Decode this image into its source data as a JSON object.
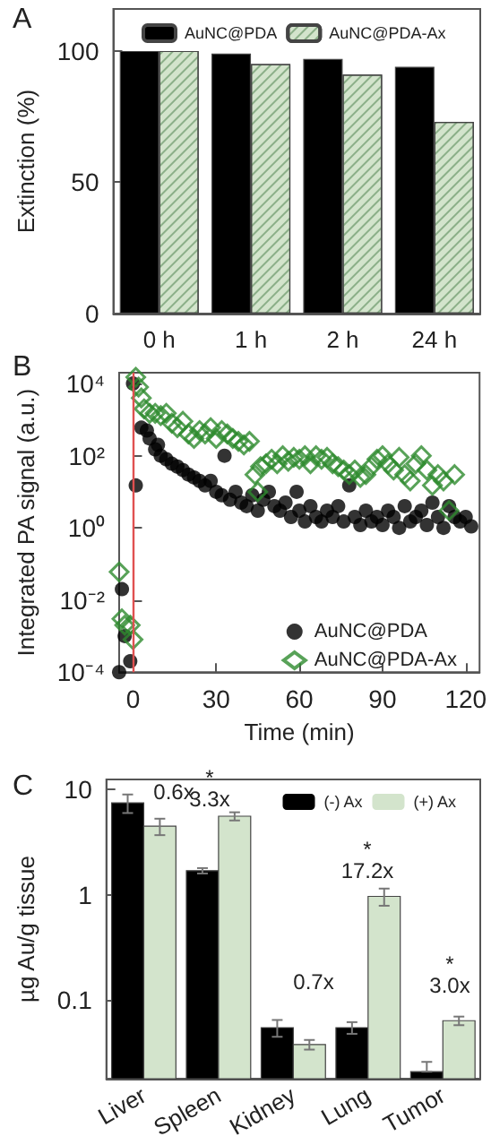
{
  "chart_data": [
    {
      "type": "bar",
      "title": "A",
      "ylabel": "Extinction (%)",
      "categories": [
        "0 h",
        "1 h",
        "2 h",
        "24 h"
      ],
      "series": [
        {
          "name": "AuNC@PDA",
          "color": "#000000",
          "values": [
            100,
            99,
            97,
            94
          ]
        },
        {
          "name": "AuNC@PDA-Ax",
          "color": "#d3e4cc",
          "values": [
            100,
            95,
            91,
            73
          ]
        }
      ],
      "ylim": [
        0,
        116
      ],
      "yticks": [
        0,
        50,
        100
      ],
      "grid": false,
      "legend": "top"
    },
    {
      "type": "scatter",
      "title": "B",
      "xlabel": "Time (min)",
      "ylabel": "Integrated PA signal (a.u.)",
      "log": "y",
      "series": [
        {
          "name": "AuNC@PDA",
          "color": "#000000",
          "marker": "circle",
          "x": [
            -5,
            -4,
            -3,
            -1,
            0,
            1,
            3,
            5,
            6,
            8,
            9,
            10,
            12,
            14,
            16,
            18,
            20,
            22,
            24,
            26,
            28,
            30,
            32,
            33,
            35,
            37,
            39,
            41,
            43,
            45,
            47,
            49,
            51,
            53,
            55,
            57,
            59,
            60,
            62,
            64,
            66,
            68,
            70,
            72,
            74,
            76,
            78,
            80,
            82,
            84,
            86,
            88,
            90,
            92,
            94,
            96,
            98,
            100,
            102,
            104,
            106,
            108,
            110,
            112,
            114,
            116,
            118,
            120,
            122
          ],
          "values": [
            0.0001,
            0.02,
            0.001,
            0.0002,
            10000,
            15,
            600,
            500,
            300,
            150,
            200,
            100,
            80,
            60,
            50,
            40,
            30,
            25,
            20,
            15,
            20,
            10,
            8,
            100,
            6,
            10,
            5,
            4,
            8,
            3,
            6,
            10,
            4,
            3,
            5,
            2,
            10,
            3,
            1.5,
            4,
            2,
            1.5,
            3,
            2,
            4,
            1.5,
            15,
            2,
            1.2,
            3,
            1.5,
            2,
            1.2,
            3,
            2,
            1,
            4,
            1.5,
            2,
            3,
            1.2,
            5,
            2,
            1,
            4,
            2,
            1.5,
            2,
            1.1
          ]
        },
        {
          "name": "AuNC@PDA-Ax",
          "color": "#2e8b2e",
          "marker": "diamond",
          "x": [
            -5,
            -4,
            -3,
            -1,
            0,
            1,
            2,
            3,
            4,
            6,
            8,
            10,
            12,
            14,
            16,
            18,
            20,
            22,
            24,
            26,
            28,
            30,
            32,
            34,
            36,
            38,
            40,
            42,
            44,
            45,
            46,
            48,
            50,
            52,
            54,
            56,
            58,
            60,
            62,
            64,
            66,
            68,
            70,
            72,
            74,
            76,
            78,
            80,
            82,
            84,
            86,
            88,
            90,
            92,
            94,
            96,
            98,
            100,
            102,
            104,
            106,
            108,
            110,
            112,
            114,
            116
          ],
          "values": [
            0.06,
            0.003,
            0.002,
            0.002,
            0.0008,
            15000,
            8000,
            4000,
            2000,
            1500,
            1500,
            1300,
            1500,
            800,
            600,
            900,
            400,
            300,
            500,
            400,
            600,
            300,
            500,
            400,
            300,
            250,
            200,
            250,
            30,
            10,
            50,
            60,
            80,
            60,
            100,
            70,
            90,
            80,
            100,
            60,
            100,
            80,
            90,
            60,
            50,
            40,
            30,
            40,
            25,
            30,
            50,
            80,
            100,
            60,
            40,
            90,
            30,
            20,
            60,
            100,
            40,
            15,
            30,
            20,
            3,
            30
          ]
        }
      ],
      "xlim": [
        -5,
        125
      ],
      "xticks": [
        0,
        30,
        60,
        90,
        120
      ],
      "ylim": [
        0.0001,
        20000
      ],
      "yticks": [
        {
          "value": 0.0001,
          "label": "10⁻⁴"
        },
        {
          "value": 0.01,
          "label": "10⁻²"
        },
        {
          "value": 1,
          "label": "10⁰"
        },
        {
          "value": 100,
          "label": "10²"
        },
        {
          "value": 10000,
          "label": "10⁴"
        }
      ],
      "ref_lines": [
        {
          "axis": "x",
          "value": 0,
          "label": null,
          "color": "#e05050"
        }
      ],
      "grid": false,
      "legend": "bottom right"
    },
    {
      "type": "bar",
      "title": "C",
      "ylabel": "µg Au/g tissue",
      "log": "y",
      "categories": [
        "Liver",
        "Spleen",
        "Kidney",
        "Lung",
        "Tumor"
      ],
      "series": [
        {
          "name": "(-) Ax",
          "color": "#000000",
          "values": [
            7.5,
            1.7,
            0.055,
            0.055,
            0.021
          ],
          "errors": [
            1.5,
            0.1,
            0.01,
            0.007,
            [
              0.021,
              0.026
            ]
          ]
        },
        {
          "name": "(+) Ax",
          "color": "#d3e4cc",
          "values": [
            4.5,
            5.6,
            0.038,
            0.97,
            0.064
          ],
          "errors": [
            0.8,
            0.5,
            0.004,
            0.18,
            0.006
          ]
        }
      ],
      "ylim": [
        0.018,
        12.5
      ],
      "yticks": [
        0.1,
        1,
        10
      ],
      "annotations": [
        "0.6x",
        "*",
        "3.3x",
        "0.7x",
        "*",
        "17.2x",
        "*",
        "3.0x"
      ],
      "grid": false,
      "legend": "top right"
    }
  ]
}
